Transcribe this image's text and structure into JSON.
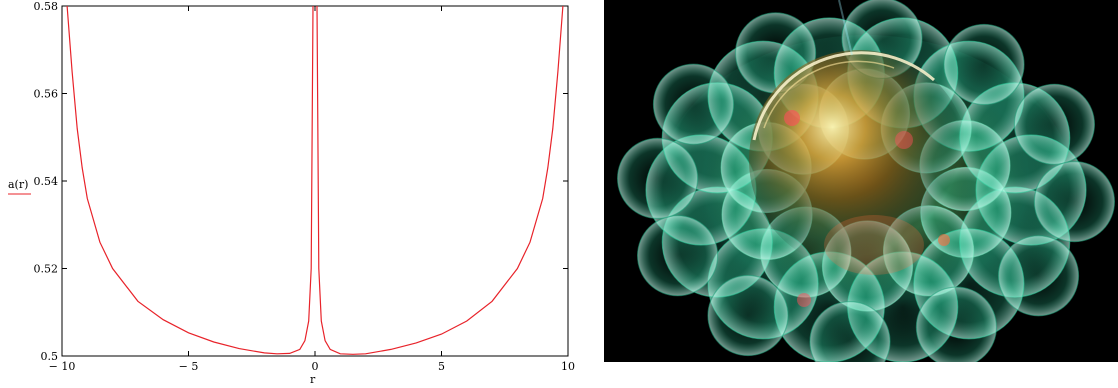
{
  "chart_data": {
    "type": "line",
    "xlabel": "r",
    "ylabel": "a(r)",
    "xlim": [
      -10,
      10
    ],
    "ylim": [
      0.5,
      0.58
    ],
    "x_ticks": [
      -10,
      -5,
      0,
      5,
      10
    ],
    "x_tick_labels": [
      "− 10",
      "− 5",
      "0",
      "5",
      "10"
    ],
    "y_ticks": [
      0.5,
      0.52,
      0.54,
      0.56,
      0.58
    ],
    "y_tick_labels": [
      "0.5",
      "0.52",
      "0.54",
      "0.56",
      "0.58"
    ],
    "grid": false,
    "series_color": "#e8232a",
    "series": [
      {
        "name": "a(r)",
        "x": [
          -9.8,
          -9.6,
          -9.4,
          -9.2,
          -9,
          -8.5,
          -8,
          -7,
          -6,
          -5,
          -4,
          -3,
          -2,
          -1.5,
          -1,
          -0.6,
          -0.4,
          -0.25,
          -0.15,
          -0.08,
          0.08,
          0.15,
          0.25,
          0.4,
          0.6,
          1,
          1.5,
          2,
          3,
          4,
          5,
          6,
          7,
          8,
          8.5,
          9,
          9.2,
          9.4,
          9.6,
          9.8
        ],
        "y": [
          0.58,
          0.565,
          0.552,
          0.543,
          0.536,
          0.526,
          0.52,
          0.5125,
          0.5083,
          0.5053,
          0.5032,
          0.5017,
          0.5007,
          0.5005,
          0.5006,
          0.5015,
          0.5035,
          0.508,
          0.52,
          0.58,
          0.58,
          0.52,
          0.508,
          0.5035,
          0.5015,
          0.5005,
          0.5004,
          0.5005,
          0.5015,
          0.503,
          0.505,
          0.508,
          0.5125,
          0.52,
          0.526,
          0.536,
          0.543,
          0.552,
          0.565,
          0.58
        ]
      }
    ]
  },
  "image_panel": {
    "background": "#000000",
    "palette": [
      "#2fd1a0",
      "#f2c14a",
      "#ff6a3a",
      "#ffffff"
    ]
  }
}
